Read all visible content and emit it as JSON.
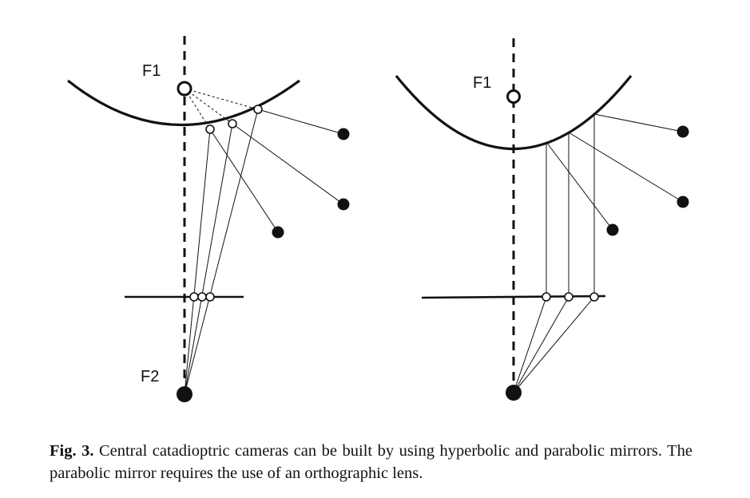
{
  "figure": {
    "left_panel": {
      "label_f1": "F1",
      "label_f2": "F2"
    },
    "right_panel": {
      "label_f1": "F1"
    }
  },
  "caption": {
    "label": "Fig. 3.",
    "text": "Central catadioptric cameras can be built by using hyperbolic and parabolic mirrors. The parabolic mirror requires the use of an orthographic lens."
  }
}
